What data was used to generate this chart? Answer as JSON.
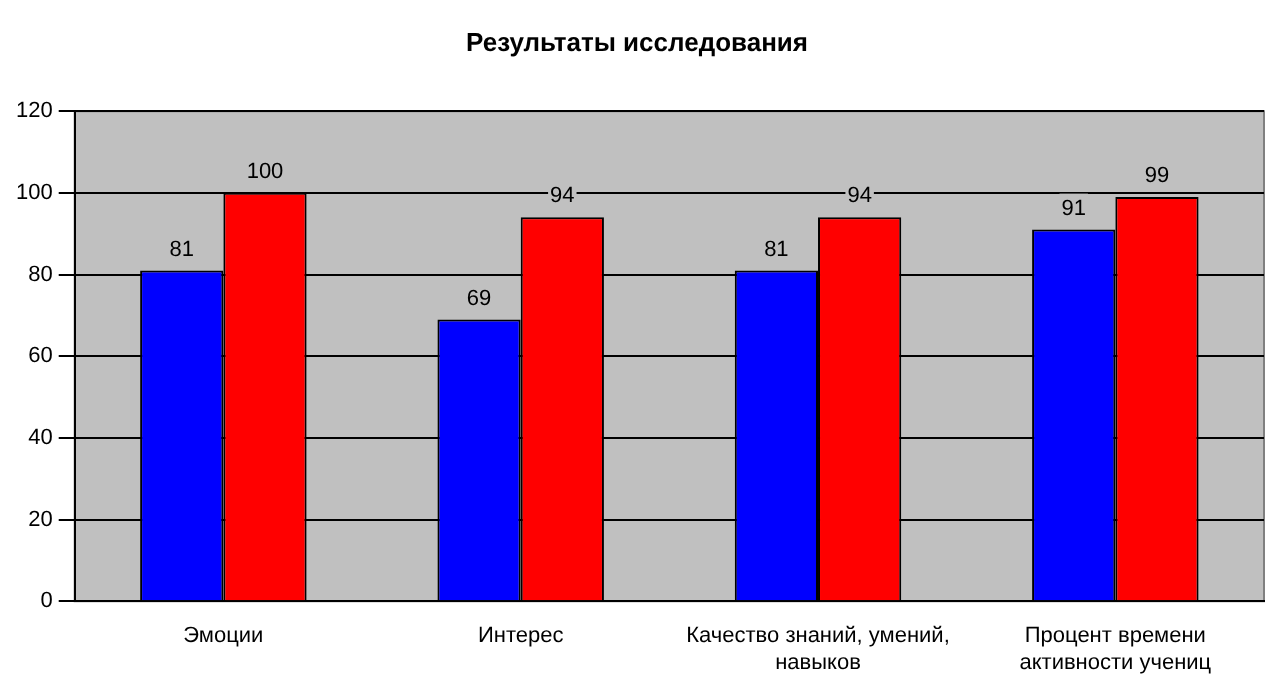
{
  "chart_data": {
    "type": "bar",
    "title": "Результаты исследования",
    "categories": [
      "Эмоции",
      "Интерес",
      "Качество знаний, умений, навыков",
      "Процент времени активности учениц"
    ],
    "series": [
      {
        "color": "#0000ff",
        "values": [
          81,
          69,
          81,
          91
        ]
      },
      {
        "color": "#ff0000",
        "values": [
          100,
          94,
          94,
          99
        ]
      }
    ],
    "ylim": [
      0,
      120
    ],
    "yticks": [
      0,
      20,
      40,
      60,
      80,
      100,
      120
    ],
    "grid": "y",
    "legend": false,
    "data_labels": true
  }
}
